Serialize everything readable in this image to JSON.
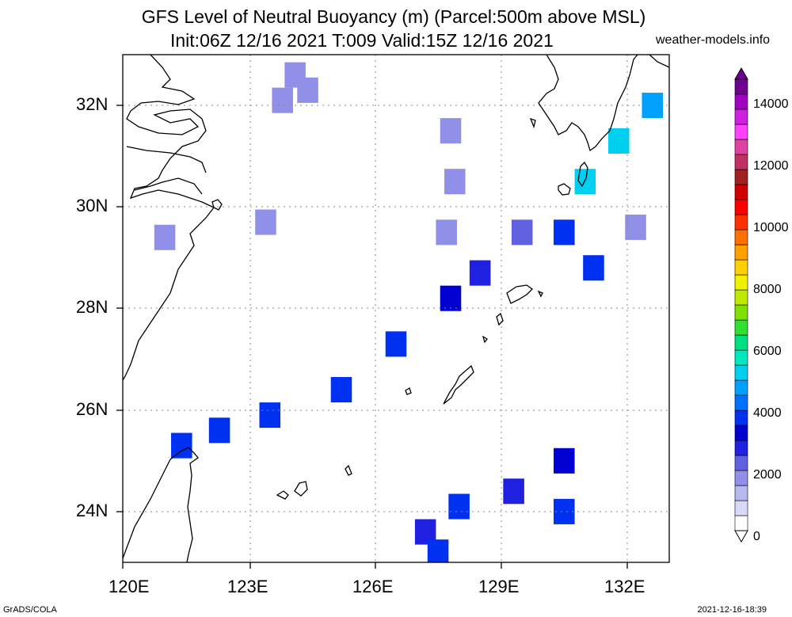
{
  "title": {
    "line1": "GFS Level of Neutral Buoyancy (m) (Parcel:500m above MSL)",
    "line2": "Init:06Z 12/16 2021 T:009 Valid:15Z 12/16 2021"
  },
  "site": "weather-models.info",
  "footer": {
    "left": "GrADS/COLA",
    "right": "2021-12-16-18:39"
  },
  "axes": {
    "x_ticks": [
      "120E",
      "123E",
      "126E",
      "129E",
      "132E"
    ],
    "y_ticks": [
      "24N",
      "26N",
      "28N",
      "30N",
      "32N"
    ],
    "lon_range": [
      120,
      133
    ],
    "lat_range": [
      23,
      33
    ]
  },
  "colorbar": {
    "labels": [
      "0",
      "2000",
      "4000",
      "6000",
      "8000",
      "10000",
      "12000",
      "14000"
    ],
    "colors": [
      "#ffffff",
      "#d8d8f8",
      "#b8b8f0",
      "#9090e8",
      "#6060e0",
      "#2020e0",
      "#0000d0",
      "#0030f0",
      "#0070ff",
      "#00a0ff",
      "#00d0f0",
      "#00e8c0",
      "#00e080",
      "#30e030",
      "#80e000",
      "#c0e800",
      "#f0f000",
      "#ffd000",
      "#ffa000",
      "#ff7000",
      "#ff3000",
      "#ff0000",
      "#d00000",
      "#a02020",
      "#c03060",
      "#e040a0",
      "#ff40ff",
      "#d020e0",
      "#a000c0",
      "#700090"
    ]
  },
  "chart_data": {
    "type": "heatmap",
    "title": "GFS Level of Neutral Buoyancy (m) (Parcel:500m above MSL)",
    "units": "m",
    "cells": [
      {
        "lon": 124.1,
        "lat": 32.6,
        "value": 1500
      },
      {
        "lon": 124.4,
        "lat": 32.3,
        "value": 1500
      },
      {
        "lon": 123.8,
        "lat": 32.1,
        "value": 1500
      },
      {
        "lon": 123.4,
        "lat": 29.7,
        "value": 1600
      },
      {
        "lon": 121.0,
        "lat": 29.4,
        "value": 1500
      },
      {
        "lon": 127.8,
        "lat": 31.5,
        "value": 1500
      },
      {
        "lon": 127.9,
        "lat": 30.5,
        "value": 1600
      },
      {
        "lon": 127.7,
        "lat": 29.5,
        "value": 1500
      },
      {
        "lon": 129.5,
        "lat": 29.5,
        "value": 2200
      },
      {
        "lon": 128.5,
        "lat": 28.7,
        "value": 2500
      },
      {
        "lon": 127.8,
        "lat": 28.2,
        "value": 3300
      },
      {
        "lon": 126.5,
        "lat": 27.3,
        "value": 3600
      },
      {
        "lon": 125.2,
        "lat": 26.4,
        "value": 3600
      },
      {
        "lon": 123.5,
        "lat": 25.9,
        "value": 3500
      },
      {
        "lon": 122.3,
        "lat": 25.6,
        "value": 3500
      },
      {
        "lon": 121.4,
        "lat": 25.3,
        "value": 3500
      },
      {
        "lon": 130.5,
        "lat": 29.5,
        "value": 3500
      },
      {
        "lon": 131.0,
        "lat": 30.5,
        "value": 5000
      },
      {
        "lon": 131.8,
        "lat": 31.3,
        "value": 5200
      },
      {
        "lon": 132.6,
        "lat": 32.0,
        "value": 4600
      },
      {
        "lon": 132.2,
        "lat": 29.6,
        "value": 1800
      },
      {
        "lon": 131.2,
        "lat": 28.8,
        "value": 3600
      },
      {
        "lon": 130.5,
        "lat": 25.0,
        "value": 3300
      },
      {
        "lon": 129.3,
        "lat": 24.4,
        "value": 2800
      },
      {
        "lon": 130.5,
        "lat": 24.0,
        "value": 3800
      },
      {
        "lon": 128.0,
        "lat": 24.1,
        "value": 3500
      },
      {
        "lon": 127.2,
        "lat": 23.6,
        "value": 2700
      },
      {
        "lon": 127.5,
        "lat": 23.2,
        "value": 3700
      }
    ]
  }
}
